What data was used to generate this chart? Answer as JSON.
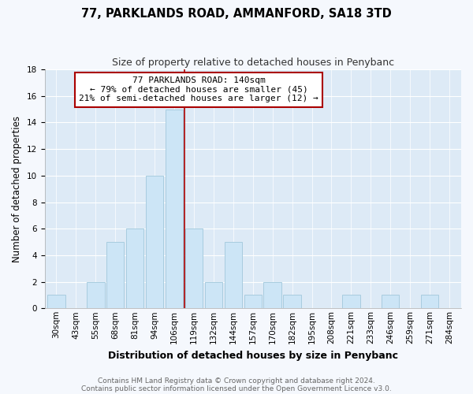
{
  "title": "77, PARKLANDS ROAD, AMMANFORD, SA18 3TD",
  "subtitle": "Size of property relative to detached houses in Penybanc",
  "xlabel": "Distribution of detached houses by size in Penybanc",
  "ylabel": "Number of detached properties",
  "bar_labels": [
    "30sqm",
    "43sqm",
    "55sqm",
    "68sqm",
    "81sqm",
    "94sqm",
    "106sqm",
    "119sqm",
    "132sqm",
    "144sqm",
    "157sqm",
    "170sqm",
    "182sqm",
    "195sqm",
    "208sqm",
    "221sqm",
    "233sqm",
    "246sqm",
    "259sqm",
    "271sqm",
    "284sqm"
  ],
  "bar_values": [
    1,
    0,
    2,
    5,
    6,
    10,
    15,
    6,
    2,
    5,
    1,
    2,
    1,
    0,
    0,
    1,
    0,
    1,
    0,
    1,
    0
  ],
  "bar_color": "#cce5f6",
  "bar_edge_color": "#a8ccdf",
  "ylim": [
    0,
    18
  ],
  "yticks": [
    0,
    2,
    4,
    6,
    8,
    10,
    12,
    14,
    16,
    18
  ],
  "property_line_x": 6.5,
  "property_line_color": "#aa0000",
  "annotation_title": "77 PARKLANDS ROAD: 140sqm",
  "annotation_line1": "← 79% of detached houses are smaller (45)",
  "annotation_line2": "21% of semi-detached houses are larger (12) →",
  "annotation_box_facecolor": "#ffffff",
  "annotation_box_edgecolor": "#aa0000",
  "footer_line1": "Contains HM Land Registry data © Crown copyright and database right 2024.",
  "footer_line2": "Contains public sector information licensed under the Open Government Licence v3.0.",
  "fig_facecolor": "#f5f8fd",
  "plot_facecolor": "#ddeaf6",
  "grid_color": "#ffffff",
  "title_fontsize": 10.5,
  "subtitle_fontsize": 9,
  "ylabel_fontsize": 8.5,
  "xlabel_fontsize": 9,
  "tick_fontsize": 7.5,
  "footer_fontsize": 6.5
}
